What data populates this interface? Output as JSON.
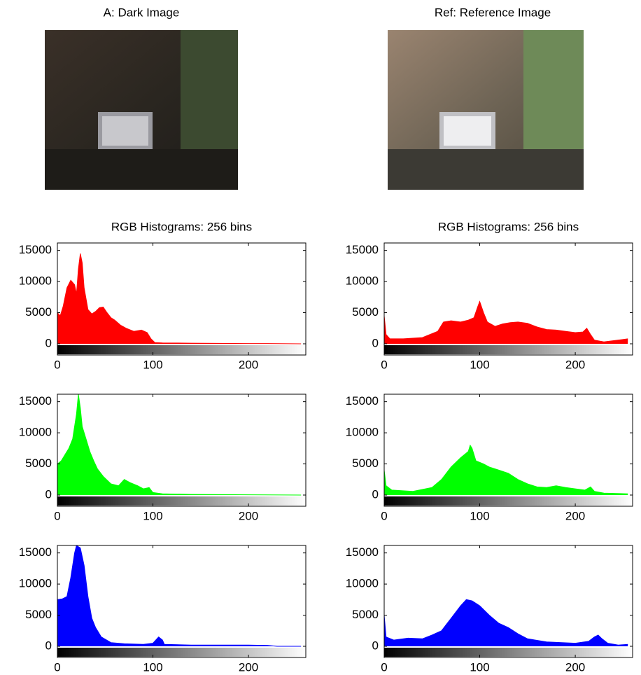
{
  "images": [
    {
      "title": "A:  Dark Image"
    },
    {
      "title": "Ref:  Reference Image"
    }
  ],
  "chart_data": [
    {
      "type": "area",
      "title": "RGB Histograms: 256 bins",
      "color": "#ff0000",
      "x": [
        0,
        3,
        6,
        10,
        14,
        18,
        20,
        22,
        24,
        26,
        28,
        32,
        36,
        40,
        44,
        48,
        52,
        56,
        60,
        66,
        72,
        80,
        88,
        94,
        98,
        102,
        110,
        140,
        200,
        220,
        255
      ],
      "values": [
        5000,
        4500,
        6000,
        9000,
        10200,
        9500,
        8000,
        12000,
        14500,
        13000,
        9000,
        5500,
        4800,
        5200,
        5800,
        5900,
        5000,
        4200,
        3800,
        3000,
        2500,
        2000,
        2200,
        1800,
        800,
        200,
        150,
        100,
        50,
        50,
        0
      ],
      "xlim": [
        0,
        260
      ],
      "ylim": [
        -1800,
        16200
      ],
      "xticks": [
        0,
        100,
        200
      ],
      "yticks": [
        0,
        5000,
        10000,
        15000
      ]
    },
    {
      "type": "area",
      "color": "#00ff00",
      "x": [
        0,
        4,
        8,
        12,
        16,
        20,
        22,
        24,
        26,
        30,
        34,
        38,
        42,
        48,
        56,
        64,
        70,
        76,
        84,
        90,
        96,
        100,
        110,
        140,
        200,
        255
      ],
      "values": [
        5000,
        5500,
        6500,
        7500,
        9000,
        13000,
        16200,
        14000,
        11000,
        9000,
        7000,
        5500,
        4200,
        3000,
        1800,
        1500,
        2500,
        2000,
        1500,
        1000,
        1200,
        400,
        200,
        100,
        50,
        0
      ],
      "xlim": [
        0,
        260
      ],
      "ylim": [
        -1800,
        16200
      ],
      "xticks": [
        0,
        100,
        200
      ],
      "yticks": [
        0,
        5000,
        10000,
        15000
      ]
    },
    {
      "type": "area",
      "color": "#0000ff",
      "x": [
        0,
        5,
        10,
        14,
        18,
        20,
        24,
        28,
        32,
        36,
        40,
        46,
        56,
        70,
        90,
        100,
        106,
        110,
        112,
        140,
        200,
        220,
        230,
        255
      ],
      "values": [
        7500,
        7600,
        8000,
        11000,
        15000,
        16200,
        15800,
        13000,
        8000,
        4500,
        3000,
        1500,
        600,
        400,
        300,
        500,
        1500,
        1000,
        300,
        200,
        200,
        150,
        0,
        0
      ],
      "xlim": [
        0,
        260
      ],
      "ylim": [
        -1800,
        16200
      ],
      "xticks": [
        0,
        100,
        200
      ],
      "yticks": [
        0,
        5000,
        10000,
        15000
      ]
    },
    {
      "type": "area",
      "title": "RGB Histograms: 256 bins",
      "color": "#ff0000",
      "x": [
        0,
        2,
        6,
        20,
        40,
        56,
        62,
        70,
        80,
        88,
        94,
        98,
        100,
        104,
        108,
        116,
        124,
        132,
        140,
        150,
        160,
        170,
        180,
        190,
        200,
        208,
        212,
        216,
        220,
        230,
        255
      ],
      "values": [
        4500,
        1500,
        800,
        800,
        1000,
        2000,
        3500,
        3700,
        3500,
        3800,
        4200,
        6000,
        6800,
        5000,
        3500,
        2800,
        3200,
        3400,
        3500,
        3300,
        2700,
        2300,
        2200,
        2000,
        1800,
        1900,
        2500,
        1500,
        600,
        300,
        800
      ],
      "xlim": [
        0,
        260
      ],
      "ylim": [
        -1800,
        16200
      ],
      "xticks": [
        0,
        100,
        200
      ],
      "yticks": [
        0,
        5000,
        10000,
        15000
      ]
    },
    {
      "type": "area",
      "color": "#00ff00",
      "x": [
        0,
        2,
        8,
        30,
        50,
        60,
        70,
        80,
        88,
        90,
        92,
        96,
        104,
        110,
        120,
        130,
        140,
        150,
        160,
        170,
        180,
        190,
        200,
        210,
        216,
        220,
        230,
        255
      ],
      "values": [
        4000,
        1500,
        800,
        600,
        1200,
        2500,
        4500,
        6000,
        7000,
        8000,
        7500,
        5500,
        5000,
        4500,
        4000,
        3500,
        2500,
        1800,
        1300,
        1200,
        1500,
        1200,
        1000,
        800,
        1300,
        600,
        300,
        200
      ],
      "xlim": [
        0,
        260
      ],
      "ylim": [
        -1800,
        16200
      ],
      "xticks": [
        0,
        100,
        200
      ],
      "yticks": [
        0,
        5000,
        10000,
        15000
      ]
    },
    {
      "type": "area",
      "color": "#0000ff",
      "x": [
        0,
        2,
        10,
        25,
        40,
        50,
        60,
        70,
        80,
        86,
        92,
        100,
        110,
        120,
        130,
        140,
        150,
        170,
        200,
        214,
        220,
        224,
        228,
        234,
        245,
        255
      ],
      "values": [
        5000,
        1500,
        1000,
        1300,
        1200,
        1800,
        2500,
        4500,
        6500,
        7500,
        7300,
        6500,
        5000,
        3700,
        3000,
        2000,
        1200,
        700,
        500,
        800,
        1500,
        1800,
        1200,
        500,
        200,
        300
      ],
      "xlim": [
        0,
        260
      ],
      "ylim": [
        -1800,
        16200
      ],
      "xticks": [
        0,
        100,
        200
      ],
      "yticks": [
        0,
        5000,
        10000,
        15000
      ]
    }
  ]
}
